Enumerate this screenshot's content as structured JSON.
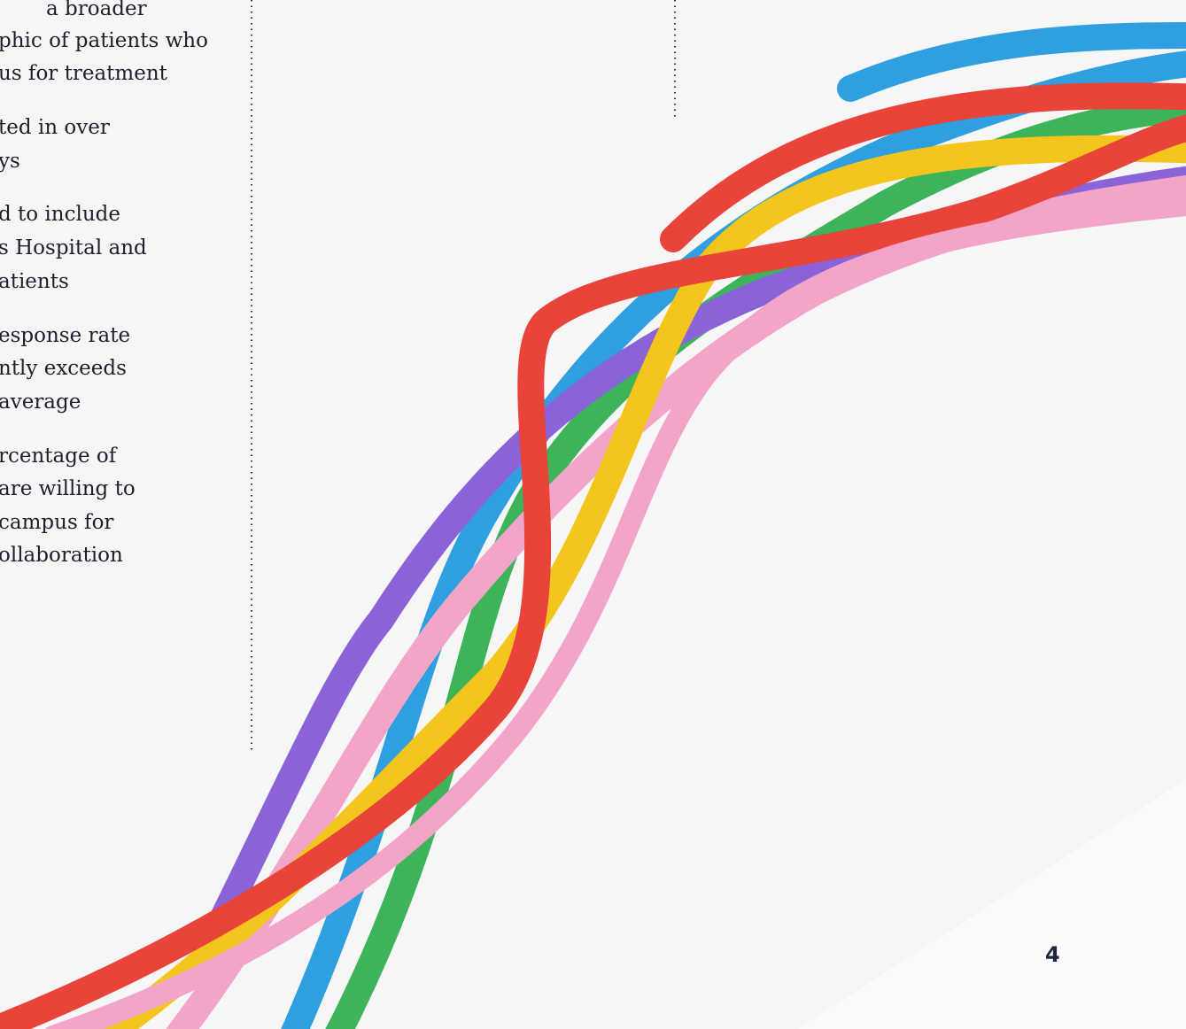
{
  "paragraphs": [
    [
      "a broader",
      "phic of patients who",
      "us for treatment"
    ],
    [
      "ted in over",
      "ys"
    ],
    [
      "d to include",
      "s Hospital and",
      "atients"
    ],
    [
      "esponse rate",
      "ntly exceeds",
      "average"
    ],
    [
      "rcentage of",
      "are willing to",
      "campus for",
      "ollaboration"
    ]
  ],
  "page_number": "4"
}
